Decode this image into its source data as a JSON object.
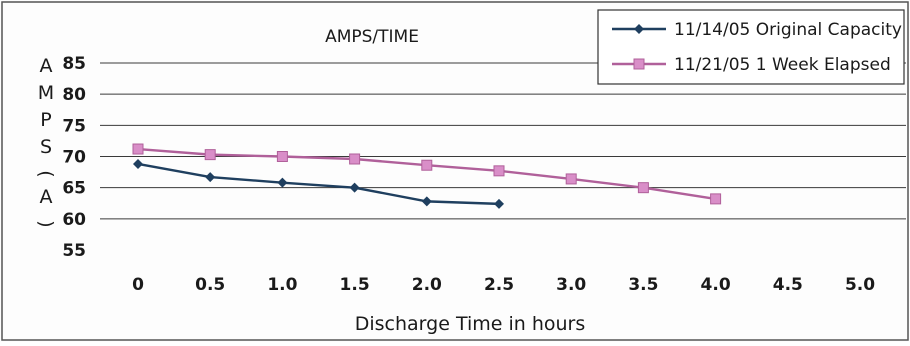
{
  "chart_data": {
    "type": "line",
    "title": "AMPS/TIME",
    "xlabel": "Discharge Time in hours",
    "ylabel": "AMPS (A)",
    "ylabel_glyphs": [
      "A",
      "M",
      "P",
      "S",
      "(",
      "A",
      ")"
    ],
    "x_ticks": [
      "0",
      "0.5",
      "1.0",
      "1.5",
      "2.0",
      "2.5",
      "3.0",
      "3.5",
      "4.0",
      "4.5",
      "5.0"
    ],
    "x_values": [
      0,
      0.5,
      1.0,
      1.5,
      2.0,
      2.5,
      3.0,
      3.5,
      4.0,
      4.5,
      5.0
    ],
    "y_ticks": [
      "85",
      "80",
      "75",
      "70",
      "65",
      "60",
      "55"
    ],
    "ylim": [
      55,
      85
    ],
    "xlim": [
      0,
      5.0
    ],
    "grid": true,
    "legend_position": "top-right",
    "series": [
      {
        "name": "11/14/05 Original Capacity",
        "color": "#1f3f5f",
        "marker": "diamond",
        "x": [
          0,
          0.5,
          1.0,
          1.5,
          2.0,
          2.5
        ],
        "values": [
          68.8,
          66.7,
          65.8,
          65.0,
          62.8,
          62.4
        ]
      },
      {
        "name": "11/21/05 1 Week Elapsed",
        "color": "#b0609a",
        "marker": "square",
        "x": [
          0,
          0.5,
          1.0,
          1.5,
          2.0,
          2.5,
          3.0,
          3.5,
          4.0
        ],
        "values": [
          71.2,
          70.3,
          70.0,
          69.6,
          68.6,
          67.7,
          66.4,
          65.0,
          63.2
        ]
      }
    ]
  }
}
